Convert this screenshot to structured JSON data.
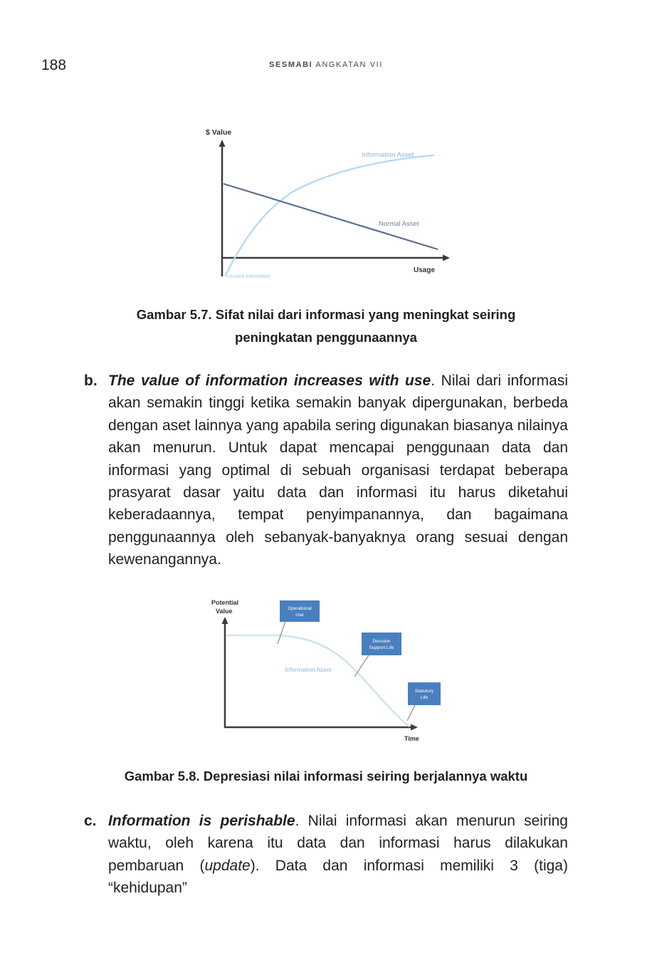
{
  "header": {
    "page_number": "188",
    "running_title_bold": "SESMABI",
    "running_title_rest": " ANGKATAN VII"
  },
  "figure1": {
    "y_label": "$ Value",
    "x_label": "Usage",
    "curve_label_information": "Information Asset",
    "curve_label_normal": "Normal Asset",
    "origin_label": "Unused information",
    "caption_line1": "Gambar 5.7. Sifat nilai dari informasi yang meningkat seiring",
    "caption_line2": "peningkatan penggunaannya"
  },
  "section_b": {
    "marker": "b.",
    "lead": "The value of information increases with use",
    "body": ". Nilai dari informasi akan semakin tinggi ketika semakin banyak dipergunakan, berbeda dengan aset lainnya yang apabila sering digunakan biasanya nilainya akan menurun. Untuk dapat mencapai penggunaan data dan informasi yang optimal di sebuah organisasi terdapat beberapa prasyarat dasar yaitu data dan informasi itu harus diketahui keberadaannya, tempat penyimpanannya, dan bagaimana penggunaannya oleh sebanyak-banyaknya orang sesuai dengan kewenangannya."
  },
  "figure2": {
    "y_label_line1": "Potential",
    "y_label_line2": "Value",
    "x_label": "Time",
    "curve_label": "Information Asset",
    "callout1_line1": "Operational",
    "callout1_line2": "Use",
    "callout2_line1": "Decision",
    "callout2_line2": "Support Life",
    "callout3_line1": "Statutory",
    "callout3_line2": "Life",
    "caption": "Gambar 5.8. Depresiasi nilai informasi seiring berjalannya waktu"
  },
  "section_c": {
    "marker": "c.",
    "lead": "Information is perishable",
    "body_1": ". Nilai informasi akan menurun seiring waktu, oleh karena itu data dan informasi harus dilakukan pembaruan (",
    "body_italic": "update",
    "body_2": "). Data dan informasi memiliki 3 (tiga) “kehidupan”"
  },
  "colors": {
    "text": "#231f20",
    "info_curve": "#b9dcef",
    "normal_line": "#5b6e8f",
    "callout_fill": "#4a7fbf",
    "axis": "#3c3c3c"
  }
}
